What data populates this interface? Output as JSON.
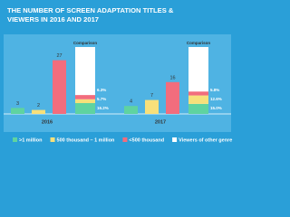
{
  "chart_data": {
    "type": "grouped-bar-with-comparison",
    "title": "THE NUMBER OF SCREEN ADAPTATION TITLES & VIEWERS IN 2016 AND 2017",
    "categories": [
      "2016",
      "2017"
    ],
    "series": [
      {
        "name": ">1 million",
        "color": "#5fd3a0",
        "values": [
          3,
          4
        ]
      },
      {
        "name": "500 thousand – 1 million",
        "color": "#f7e07a",
        "values": [
          2,
          7
        ]
      },
      {
        "name": "<500 thousand",
        "color": "#f26d7d",
        "values": [
          27,
          16
        ]
      }
    ],
    "comparison": {
      "label": "Comparison",
      "rest_name": "Viewers of other genre",
      "rest_color": "#ffffff",
      "series": [
        {
          "values": [
            16.2,
            15.0
          ],
          "value_labels": [
            "16.2%",
            "15.0%"
          ]
        },
        {
          "values": [
            5.7,
            12.6
          ],
          "value_labels": [
            "5.7%",
            "12.6%"
          ]
        },
        {
          "values": [
            6.3,
            5.8
          ],
          "value_labels": [
            "6.3%",
            "5.8%"
          ]
        }
      ]
    }
  }
}
